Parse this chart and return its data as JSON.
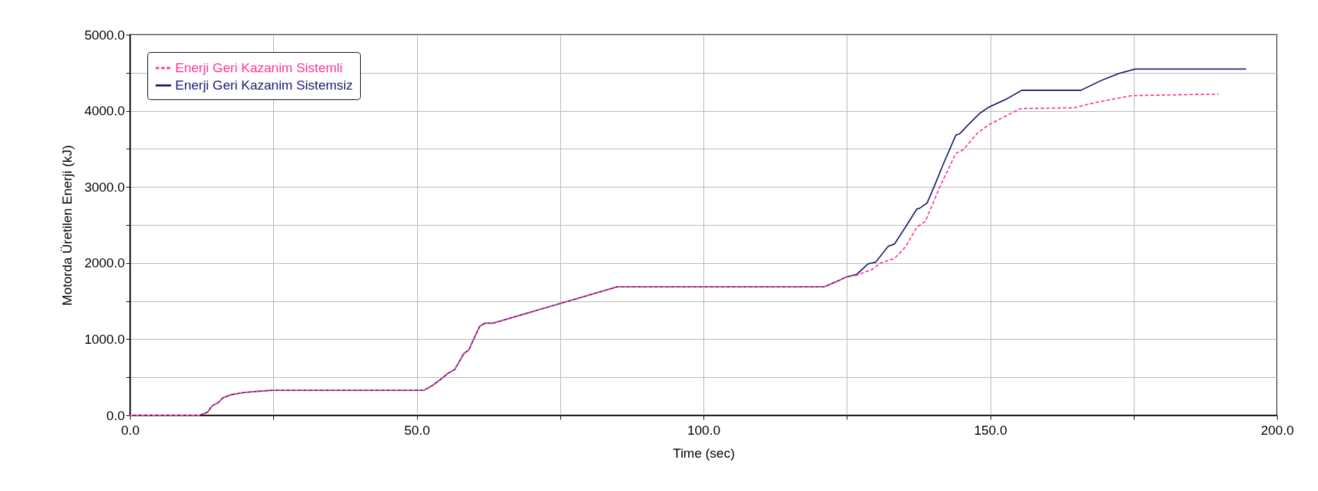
{
  "chart_data": {
    "type": "line",
    "xlabel": "Time (sec)",
    "ylabel": "Motorda Üretilen Enerji (kJ)",
    "xlim": [
      0,
      200
    ],
    "ylim": [
      0,
      5000
    ],
    "xticks": [
      {
        "value": 0,
        "label": "0.0"
      },
      {
        "value": 25,
        "label": null
      },
      {
        "value": 50,
        "label": "50.0"
      },
      {
        "value": 75,
        "label": null
      },
      {
        "value": 100,
        "label": "100.0"
      },
      {
        "value": 125,
        "label": null
      },
      {
        "value": 150,
        "label": "150.0"
      },
      {
        "value": 175,
        "label": null
      },
      {
        "value": 200,
        "label": "200.0"
      }
    ],
    "yticks": [
      {
        "value": 0,
        "label": "0.0"
      },
      {
        "value": 500,
        "label": null
      },
      {
        "value": 1000,
        "label": "1000.0"
      },
      {
        "value": 1500,
        "label": null
      },
      {
        "value": 2000,
        "label": "2000.0"
      },
      {
        "value": 2500,
        "label": null
      },
      {
        "value": 3000,
        "label": "3000.0"
      },
      {
        "value": 3500,
        "label": null
      },
      {
        "value": 4000,
        "label": "4000.0"
      },
      {
        "value": 4500,
        "label": null
      },
      {
        "value": 5000,
        "label": "5000.0"
      }
    ],
    "grid": true,
    "legend": "top left",
    "series": [
      {
        "name": "Enerji Geri Kazanim Sistemli",
        "color": "#ff3399",
        "line_style": "dashed",
        "x": [
          0,
          12.1,
          13.5,
          14.4,
          15.3,
          16.2,
          17.6,
          19.9,
          23.2,
          25,
          51.3,
          52.7,
          53.6,
          54.5,
          55.4,
          56.6,
          57.3,
          58.2,
          59.1,
          60.1,
          61.0,
          61.9,
          63.3,
          85.0,
          121.1,
          123.0,
          125.0,
          126.7,
          129.5,
          130.8,
          133.3,
          135.2,
          137.2,
          138.7,
          141.2,
          144.0,
          145.3,
          147.8,
          149.8,
          155.3,
          164.6,
          168.4,
          174.7,
          189.8
        ],
        "values": [
          0,
          0,
          40,
          130,
          160,
          230,
          270,
          300,
          320,
          330,
          330,
          390,
          440,
          490,
          550,
          600,
          690,
          810,
          860,
          1030,
          1170,
          1210,
          1210,
          1690,
          1690,
          1750,
          1820,
          1840,
          1920,
          2000,
          2060,
          2210,
          2470,
          2550,
          3000,
          3440,
          3490,
          3710,
          3820,
          4030,
          4040,
          4110,
          4200,
          4220
        ]
      },
      {
        "name": "Enerji Geri Kazanim Sistemsiz",
        "color": "#1a1a6e",
        "line_style": "solid",
        "x": [
          0,
          12.1,
          13.5,
          14.4,
          15.3,
          16.2,
          17.6,
          19.9,
          23.2,
          25,
          51.3,
          52.7,
          53.6,
          54.5,
          55.4,
          56.6,
          57.3,
          58.2,
          59.1,
          60.1,
          61.0,
          61.9,
          63.3,
          85.0,
          121.1,
          123.0,
          125.0,
          126.7,
          128.7,
          130.0,
          132.2,
          133.3,
          135.2,
          137.2,
          137.7,
          139.0,
          140.2,
          141.7,
          144.0,
          144.7,
          146.2,
          148.2,
          149.8,
          152.7,
          155.5,
          165.8,
          169.4,
          172.4,
          175.3,
          194.6
        ],
        "values": [
          0,
          0,
          40,
          130,
          160,
          230,
          270,
          300,
          320,
          330,
          330,
          390,
          440,
          490,
          550,
          600,
          690,
          810,
          860,
          1030,
          1170,
          1210,
          1210,
          1690,
          1690,
          1750,
          1820,
          1850,
          1990,
          2010,
          2220,
          2250,
          2470,
          2710,
          2720,
          2790,
          3000,
          3280,
          3680,
          3700,
          3820,
          3970,
          4050,
          4150,
          4270,
          4270,
          4400,
          4490,
          4550,
          4550
        ]
      }
    ]
  }
}
